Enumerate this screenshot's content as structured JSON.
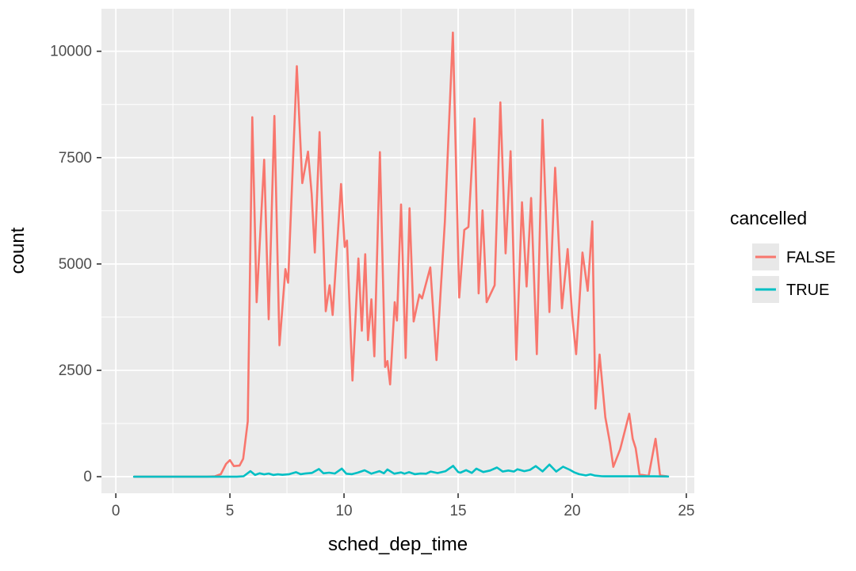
{
  "chart_data": {
    "type": "line",
    "title": "",
    "xlabel": "sched_dep_time",
    "ylabel": "count",
    "grid": true,
    "panel_bg": "#EBEBEB",
    "grid_color": "#FFFFFF",
    "tick_label_color": "#4D4D4D",
    "axis_title_color": "#000000",
    "legend": {
      "title": "cancelled",
      "position": "right",
      "key_bg": "#E8E8E8",
      "entries": [
        {
          "label": "FALSE",
          "color": "#F8766D"
        },
        {
          "label": "TRUE",
          "color": "#00BFC4"
        }
      ]
    },
    "x_ticks": [
      0,
      5,
      10,
      15,
      20,
      25
    ],
    "x_minor": [
      2.5,
      7.5,
      12.5,
      17.5,
      22.5
    ],
    "y_ticks": [
      0,
      2500,
      5000,
      7500,
      10000
    ],
    "y_minor": [
      1250,
      3750,
      6250,
      8750
    ],
    "xlim": [
      -0.63,
      25.35
    ],
    "ylim": [
      -390,
      11000
    ],
    "series": [
      {
        "name": "FALSE",
        "color": "#F8766D",
        "points": [
          [
            0.8,
            0
          ],
          [
            1.6,
            0
          ],
          [
            2.4,
            0
          ],
          [
            3.2,
            0
          ],
          [
            4.0,
            0
          ],
          [
            4.35,
            10
          ],
          [
            4.6,
            60
          ],
          [
            4.83,
            300
          ],
          [
            5.0,
            390
          ],
          [
            5.17,
            250
          ],
          [
            5.42,
            260
          ],
          [
            5.58,
            420
          ],
          [
            5.78,
            1300
          ],
          [
            5.98,
            8450
          ],
          [
            6.17,
            4100
          ],
          [
            6.5,
            7450
          ],
          [
            6.7,
            3700
          ],
          [
            6.95,
            8480
          ],
          [
            7.17,
            3090
          ],
          [
            7.43,
            4880
          ],
          [
            7.55,
            4560
          ],
          [
            7.93,
            9650
          ],
          [
            8.17,
            6900
          ],
          [
            8.42,
            7640
          ],
          [
            8.58,
            6650
          ],
          [
            8.72,
            5270
          ],
          [
            8.93,
            8100
          ],
          [
            9.2,
            3890
          ],
          [
            9.37,
            4500
          ],
          [
            9.5,
            3800
          ],
          [
            9.87,
            6880
          ],
          [
            10.03,
            5400
          ],
          [
            10.13,
            5550
          ],
          [
            10.37,
            2260
          ],
          [
            10.63,
            5130
          ],
          [
            10.78,
            3430
          ],
          [
            10.93,
            5230
          ],
          [
            11.05,
            3210
          ],
          [
            11.2,
            4170
          ],
          [
            11.33,
            2830
          ],
          [
            11.57,
            7630
          ],
          [
            11.8,
            2580
          ],
          [
            11.9,
            2720
          ],
          [
            12.02,
            2170
          ],
          [
            12.22,
            4100
          ],
          [
            12.32,
            3670
          ],
          [
            12.5,
            6400
          ],
          [
            12.7,
            2790
          ],
          [
            12.87,
            6310
          ],
          [
            13.05,
            3650
          ],
          [
            13.3,
            4280
          ],
          [
            13.42,
            4190
          ],
          [
            13.78,
            4920
          ],
          [
            14.05,
            2740
          ],
          [
            14.42,
            6000
          ],
          [
            14.77,
            10440
          ],
          [
            15.05,
            4210
          ],
          [
            15.27,
            5800
          ],
          [
            15.45,
            5870
          ],
          [
            15.72,
            8420
          ],
          [
            15.9,
            4310
          ],
          [
            16.07,
            6260
          ],
          [
            16.25,
            4100
          ],
          [
            16.6,
            4500
          ],
          [
            16.85,
            8800
          ],
          [
            17.08,
            5250
          ],
          [
            17.3,
            7650
          ],
          [
            17.55,
            2750
          ],
          [
            17.8,
            6450
          ],
          [
            18.0,
            4470
          ],
          [
            18.2,
            6550
          ],
          [
            18.45,
            2880
          ],
          [
            18.7,
            8390
          ],
          [
            19.0,
            3870
          ],
          [
            19.25,
            7260
          ],
          [
            19.55,
            3960
          ],
          [
            19.8,
            5350
          ],
          [
            20.0,
            3770
          ],
          [
            20.17,
            2880
          ],
          [
            20.45,
            5270
          ],
          [
            20.68,
            4370
          ],
          [
            20.88,
            6000
          ],
          [
            21.02,
            1600
          ],
          [
            21.2,
            2870
          ],
          [
            21.45,
            1400
          ],
          [
            21.65,
            800
          ],
          [
            21.8,
            230
          ],
          [
            22.1,
            640
          ],
          [
            22.5,
            1480
          ],
          [
            22.65,
            890
          ],
          [
            22.78,
            670
          ],
          [
            22.95,
            50
          ],
          [
            23.35,
            20
          ],
          [
            23.65,
            890
          ],
          [
            23.85,
            30
          ],
          [
            24.15,
            10
          ]
        ]
      },
      {
        "name": "TRUE",
        "color": "#00BFC4",
        "points": [
          [
            0.8,
            0
          ],
          [
            1.6,
            0
          ],
          [
            2.4,
            0
          ],
          [
            3.2,
            0
          ],
          [
            4.0,
            0
          ],
          [
            4.8,
            0
          ],
          [
            5.3,
            0
          ],
          [
            5.6,
            10
          ],
          [
            5.9,
            130
          ],
          [
            6.1,
            40
          ],
          [
            6.3,
            80
          ],
          [
            6.5,
            55
          ],
          [
            6.7,
            75
          ],
          [
            6.9,
            40
          ],
          [
            7.1,
            55
          ],
          [
            7.3,
            45
          ],
          [
            7.6,
            60
          ],
          [
            7.9,
            105
          ],
          [
            8.1,
            60
          ],
          [
            8.3,
            75
          ],
          [
            8.6,
            90
          ],
          [
            8.9,
            180
          ],
          [
            9.1,
            80
          ],
          [
            9.35,
            95
          ],
          [
            9.6,
            75
          ],
          [
            9.9,
            190
          ],
          [
            10.1,
            70
          ],
          [
            10.35,
            60
          ],
          [
            10.6,
            95
          ],
          [
            10.9,
            150
          ],
          [
            11.2,
            70
          ],
          [
            11.55,
            130
          ],
          [
            11.75,
            80
          ],
          [
            11.9,
            170
          ],
          [
            12.2,
            70
          ],
          [
            12.5,
            100
          ],
          [
            12.65,
            70
          ],
          [
            12.85,
            105
          ],
          [
            13.1,
            60
          ],
          [
            13.35,
            75
          ],
          [
            13.6,
            70
          ],
          [
            13.8,
            120
          ],
          [
            14.1,
            85
          ],
          [
            14.45,
            130
          ],
          [
            14.78,
            255
          ],
          [
            15.0,
            110
          ],
          [
            15.1,
            95
          ],
          [
            15.35,
            155
          ],
          [
            15.6,
            90
          ],
          [
            15.8,
            190
          ],
          [
            16.1,
            110
          ],
          [
            16.4,
            145
          ],
          [
            16.7,
            215
          ],
          [
            16.95,
            120
          ],
          [
            17.2,
            145
          ],
          [
            17.45,
            120
          ],
          [
            17.6,
            175
          ],
          [
            17.9,
            130
          ],
          [
            18.15,
            160
          ],
          [
            18.4,
            250
          ],
          [
            18.7,
            125
          ],
          [
            19.0,
            285
          ],
          [
            19.3,
            120
          ],
          [
            19.6,
            235
          ],
          [
            19.9,
            160
          ],
          [
            20.1,
            100
          ],
          [
            20.3,
            60
          ],
          [
            20.6,
            30
          ],
          [
            20.8,
            55
          ],
          [
            21.0,
            25
          ],
          [
            21.3,
            10
          ],
          [
            21.7,
            8
          ],
          [
            22.1,
            8
          ],
          [
            22.6,
            8
          ],
          [
            23.1,
            8
          ],
          [
            23.6,
            8
          ],
          [
            24.2,
            5
          ]
        ]
      }
    ]
  }
}
